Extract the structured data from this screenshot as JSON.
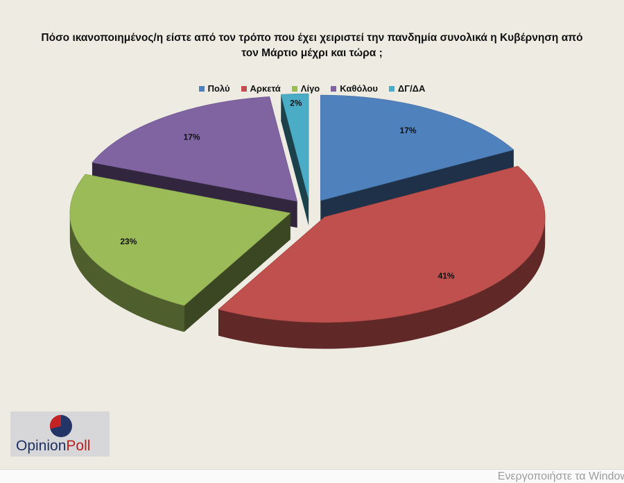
{
  "chart_data": {
    "type": "pie",
    "title": "Πόσο  ικανοποιημένος/η είστε από τον τρόπο που έχει χειριστεί την πανδημία συνολικά  η Κυβέρνηση από τον Μάρτιο μέχρι και τώρα ;",
    "title_line1": "Πόσο  ικανοποιημένος/η είστε από τον τρόπο που έχει χειριστεί την πανδημία συνολικά  η Κυβέρνηση από",
    "title_line2": "τον Μάρτιο μέχρι και τώρα ;",
    "legend_position": "top",
    "slices": [
      {
        "label": "Πολύ",
        "value": 17,
        "display": "17%",
        "color": "#4f81bd"
      },
      {
        "label": "Αρκετά",
        "value": 41,
        "display": "41%",
        "color": "#c0504d"
      },
      {
        "label": "Λίγο",
        "value": 23,
        "display": "23%",
        "color": "#9bbb59"
      },
      {
        "label": "Καθόλου",
        "value": 17,
        "display": "17%",
        "color": "#8064a2"
      },
      {
        "label": "ΔΓ/ΔΑ",
        "value": 2,
        "display": "2%",
        "color": "#4bacc6"
      }
    ]
  },
  "logo": {
    "text_opinion": "Opinion",
    "text_poll": "Poll"
  },
  "watermark": "Ενεργοποιήστε τα Window"
}
